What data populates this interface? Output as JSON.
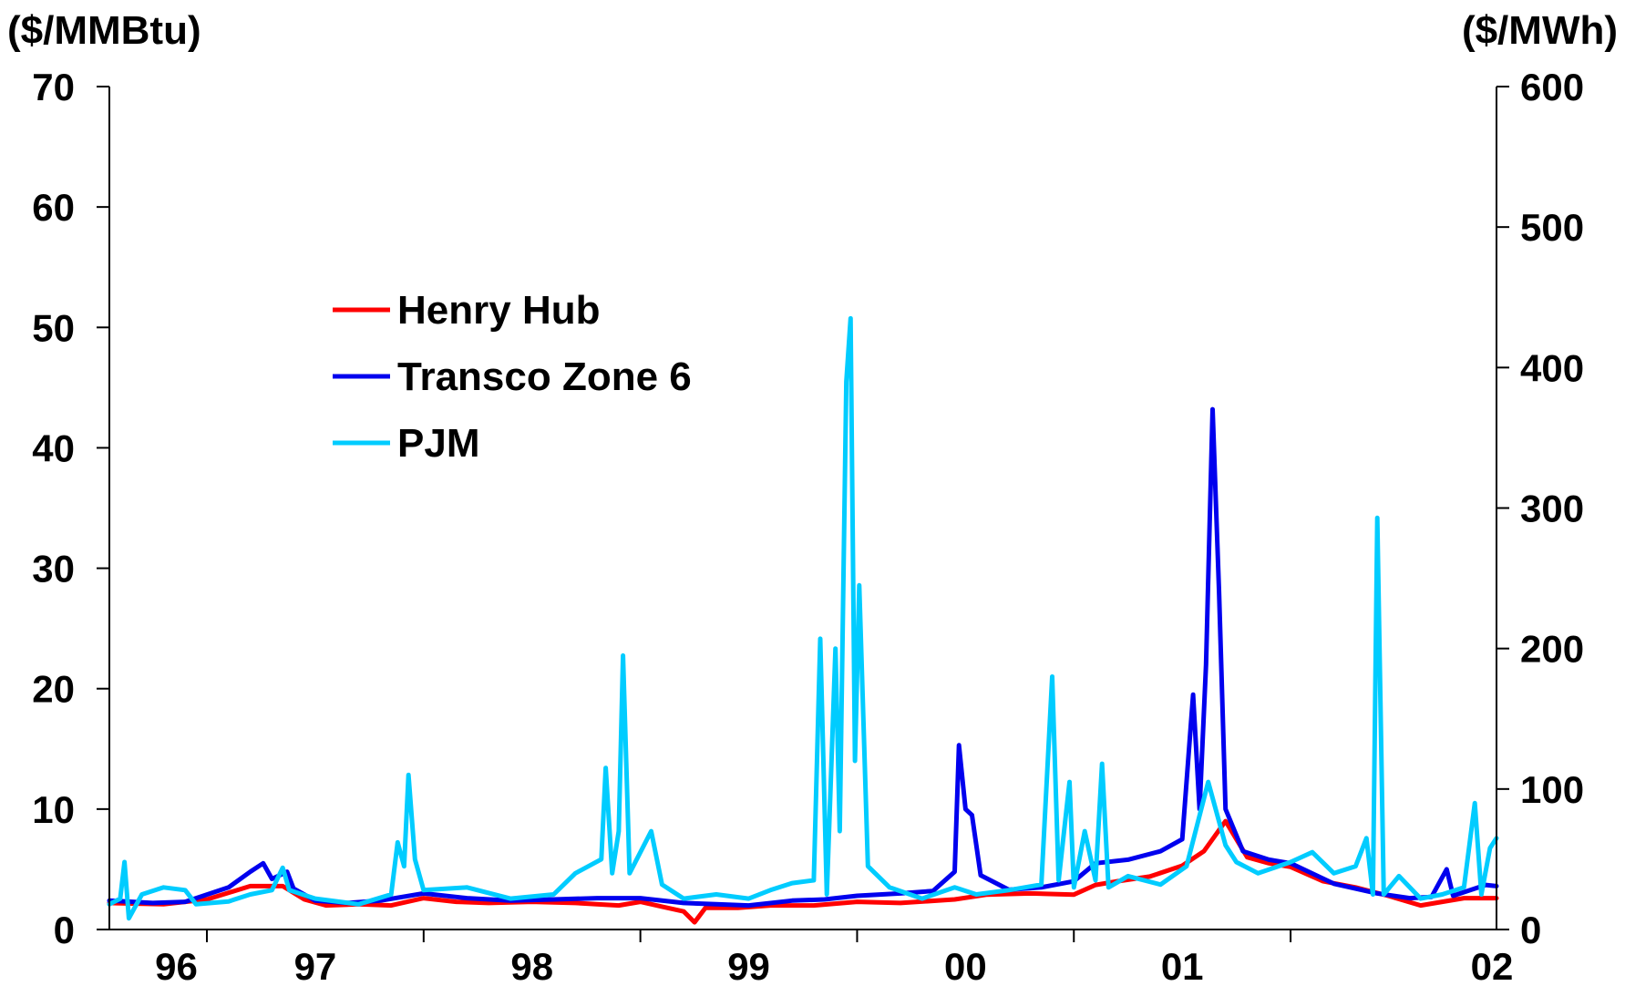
{
  "chart_data": {
    "type": "line",
    "left_axis": {
      "label": "($/MMBtu)",
      "ylim": [
        0,
        70
      ],
      "ticks": [
        "0",
        "10",
        "20",
        "30",
        "40",
        "50",
        "60",
        "70"
      ]
    },
    "right_axis": {
      "label": "($/MWh)",
      "ylim": [
        0,
        600
      ],
      "ticks": [
        "0",
        "100",
        "200",
        "300",
        "400",
        "500",
        "600"
      ]
    },
    "x_axis": {
      "xlim": [
        1995.55,
        2001.95
      ],
      "ticks": [
        "96",
        "97",
        "98",
        "99",
        "00",
        "01",
        "02"
      ],
      "tick_positions": [
        1996,
        1997,
        1998,
        1999,
        2000,
        2001,
        2002
      ]
    },
    "grid": false,
    "legend_position": "upper-left",
    "series": [
      {
        "name": "Henry Hub",
        "axis": "left",
        "color": "#ff0000",
        "points": [
          [
            1995.55,
            2.2
          ],
          [
            1995.8,
            2.1
          ],
          [
            1996.0,
            2.5
          ],
          [
            1996.2,
            3.6
          ],
          [
            1996.35,
            3.6
          ],
          [
            1996.45,
            2.5
          ],
          [
            1996.55,
            2.0
          ],
          [
            1996.7,
            2.1
          ],
          [
            1996.85,
            2.0
          ],
          [
            1997.0,
            2.6
          ],
          [
            1997.15,
            2.3
          ],
          [
            1997.3,
            2.2
          ],
          [
            1997.5,
            2.3
          ],
          [
            1997.7,
            2.2
          ],
          [
            1997.9,
            2.0
          ],
          [
            1998.0,
            2.3
          ],
          [
            1998.1,
            1.9
          ],
          [
            1998.2,
            1.5
          ],
          [
            1998.25,
            0.6
          ],
          [
            1998.3,
            1.8
          ],
          [
            1998.45,
            1.8
          ],
          [
            1998.6,
            2.0
          ],
          [
            1998.8,
            2.0
          ],
          [
            1999.0,
            2.3
          ],
          [
            1999.2,
            2.2
          ],
          [
            1999.45,
            2.5
          ],
          [
            1999.6,
            2.9
          ],
          [
            1999.8,
            3.0
          ],
          [
            2000.0,
            2.9
          ],
          [
            2000.1,
            3.7
          ],
          [
            2000.2,
            4.0
          ],
          [
            2000.35,
            4.4
          ],
          [
            2000.5,
            5.3
          ],
          [
            2000.6,
            6.5
          ],
          [
            2000.7,
            9.0
          ],
          [
            2000.8,
            6.0
          ],
          [
            2000.9,
            5.5
          ],
          [
            2001.0,
            5.2
          ],
          [
            2001.15,
            4.0
          ],
          [
            2001.3,
            3.5
          ],
          [
            2001.45,
            2.8
          ],
          [
            2001.6,
            2.0
          ],
          [
            2001.7,
            2.3
          ],
          [
            2001.8,
            2.6
          ],
          [
            2001.95,
            2.6
          ]
        ]
      },
      {
        "name": "Transco Zone 6",
        "axis": "left",
        "color": "#0000ee",
        "points": [
          [
            1995.55,
            2.4
          ],
          [
            1995.75,
            2.2
          ],
          [
            1995.9,
            2.3
          ],
          [
            1996.1,
            3.5
          ],
          [
            1996.2,
            4.8
          ],
          [
            1996.26,
            5.5
          ],
          [
            1996.3,
            4.2
          ],
          [
            1996.37,
            4.8
          ],
          [
            1996.4,
            3.4
          ],
          [
            1996.5,
            2.4
          ],
          [
            1996.65,
            2.2
          ],
          [
            1996.8,
            2.4
          ],
          [
            1997.0,
            3.0
          ],
          [
            1997.2,
            2.6
          ],
          [
            1997.4,
            2.4
          ],
          [
            1997.6,
            2.5
          ],
          [
            1997.8,
            2.6
          ],
          [
            1998.0,
            2.6
          ],
          [
            1998.2,
            2.2
          ],
          [
            1998.35,
            2.1
          ],
          [
            1998.5,
            2.0
          ],
          [
            1998.7,
            2.4
          ],
          [
            1998.85,
            2.5
          ],
          [
            1999.0,
            2.8
          ],
          [
            1999.2,
            3.0
          ],
          [
            1999.35,
            3.2
          ],
          [
            1999.45,
            4.8
          ],
          [
            1999.47,
            15.3
          ],
          [
            1999.5,
            10.0
          ],
          [
            1999.53,
            9.5
          ],
          [
            1999.57,
            4.5
          ],
          [
            1999.7,
            3.3
          ],
          [
            1999.85,
            3.5
          ],
          [
            2000.0,
            4.0
          ],
          [
            2000.1,
            5.5
          ],
          [
            2000.25,
            5.8
          ],
          [
            2000.4,
            6.5
          ],
          [
            2000.5,
            7.5
          ],
          [
            2000.55,
            19.5
          ],
          [
            2000.58,
            10.0
          ],
          [
            2000.61,
            22.0
          ],
          [
            2000.64,
            43.2
          ],
          [
            2000.67,
            28.0
          ],
          [
            2000.7,
            10.0
          ],
          [
            2000.78,
            6.5
          ],
          [
            2000.9,
            5.8
          ],
          [
            2001.0,
            5.5
          ],
          [
            2001.2,
            3.8
          ],
          [
            2001.4,
            3.0
          ],
          [
            2001.55,
            2.6
          ],
          [
            2001.65,
            2.7
          ],
          [
            2001.72,
            5.0
          ],
          [
            2001.75,
            2.8
          ],
          [
            2001.9,
            3.7
          ],
          [
            2001.95,
            3.6
          ]
        ]
      },
      {
        "name": "PJM",
        "axis": "right",
        "color": "#00ccff",
        "points": [
          [
            1995.55,
            18
          ],
          [
            1995.6,
            22
          ],
          [
            1995.62,
            48
          ],
          [
            1995.64,
            8
          ],
          [
            1995.7,
            25
          ],
          [
            1995.8,
            30
          ],
          [
            1995.9,
            28
          ],
          [
            1995.95,
            18
          ],
          [
            1996.1,
            20
          ],
          [
            1996.2,
            25
          ],
          [
            1996.3,
            28
          ],
          [
            1996.35,
            44
          ],
          [
            1996.38,
            28
          ],
          [
            1996.5,
            22
          ],
          [
            1996.7,
            18
          ],
          [
            1996.85,
            25
          ],
          [
            1996.88,
            62
          ],
          [
            1996.91,
            45
          ],
          [
            1996.93,
            110
          ],
          [
            1996.96,
            50
          ],
          [
            1997.0,
            28
          ],
          [
            1997.2,
            30
          ],
          [
            1997.4,
            22
          ],
          [
            1997.6,
            25
          ],
          [
            1997.7,
            40
          ],
          [
            1997.82,
            50
          ],
          [
            1997.84,
            115
          ],
          [
            1997.87,
            40
          ],
          [
            1997.9,
            70
          ],
          [
            1997.92,
            195
          ],
          [
            1997.95,
            40
          ],
          [
            1998.05,
            70
          ],
          [
            1998.1,
            32
          ],
          [
            1998.2,
            22
          ],
          [
            1998.35,
            25
          ],
          [
            1998.5,
            22
          ],
          [
            1998.6,
            28
          ],
          [
            1998.7,
            33
          ],
          [
            1998.8,
            35
          ],
          [
            1998.83,
            207
          ],
          [
            1998.86,
            25
          ],
          [
            1998.9,
            200
          ],
          [
            1998.92,
            70
          ],
          [
            1998.95,
            390
          ],
          [
            1998.97,
            435
          ],
          [
            1998.99,
            120
          ],
          [
            1999.01,
            245
          ],
          [
            1999.05,
            45
          ],
          [
            1999.15,
            30
          ],
          [
            1999.3,
            22
          ],
          [
            1999.45,
            30
          ],
          [
            1999.55,
            25
          ],
          [
            1999.7,
            28
          ],
          [
            1999.85,
            32
          ],
          [
            1999.9,
            180
          ],
          [
            1999.93,
            35
          ],
          [
            1999.98,
            105
          ],
          [
            2000.0,
            30
          ],
          [
            2000.05,
            70
          ],
          [
            2000.1,
            35
          ],
          [
            2000.13,
            118
          ],
          [
            2000.16,
            30
          ],
          [
            2000.25,
            38
          ],
          [
            2000.4,
            32
          ],
          [
            2000.52,
            45
          ],
          [
            2000.62,
            105
          ],
          [
            2000.7,
            60
          ],
          [
            2000.75,
            48
          ],
          [
            2000.85,
            40
          ],
          [
            2001.0,
            48
          ],
          [
            2001.1,
            55
          ],
          [
            2001.2,
            40
          ],
          [
            2001.3,
            45
          ],
          [
            2001.35,
            65
          ],
          [
            2001.38,
            25
          ],
          [
            2001.4,
            293
          ],
          [
            2001.43,
            25
          ],
          [
            2001.5,
            38
          ],
          [
            2001.6,
            22
          ],
          [
            2001.7,
            25
          ],
          [
            2001.8,
            30
          ],
          [
            2001.85,
            90
          ],
          [
            2001.88,
            25
          ],
          [
            2001.92,
            58
          ],
          [
            2001.95,
            65
          ]
        ]
      }
    ]
  }
}
